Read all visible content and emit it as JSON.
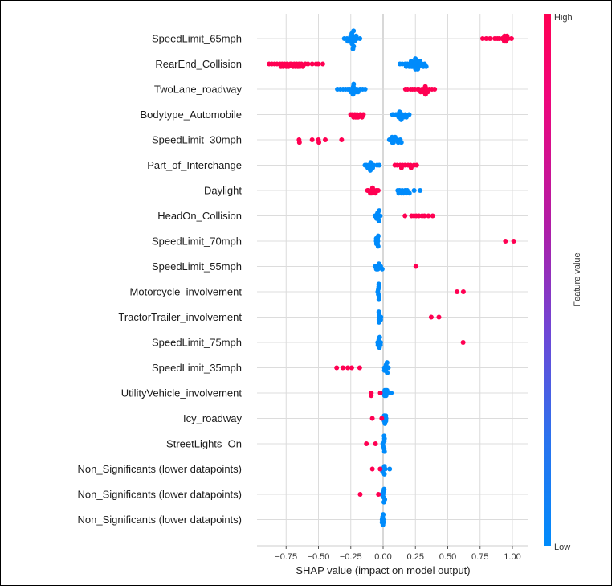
{
  "chart_data": {
    "type": "scatter",
    "subtype": "shap-beeswarm-summary",
    "title": "",
    "xlabel": "SHAP value (impact on model output)",
    "ylabel": "",
    "xlim": [
      -0.97,
      1.11
    ],
    "xticks": [
      -0.75,
      -0.5,
      -0.25,
      0.0,
      0.25,
      0.5,
      0.75,
      1.0
    ],
    "xtick_labels": [
      "−0.75",
      "−0.50",
      "−0.25",
      "0.00",
      "0.25",
      "0.50",
      "0.75",
      "1.00"
    ],
    "grid": true,
    "colorbar": {
      "label": "Feature value",
      "high_label": "High",
      "low_label": "Low",
      "high_color": "#ff0052",
      "low_color": "#008bfb",
      "placement": "right"
    },
    "features": [
      {
        "name": "SpeedLimit_65mph",
        "low": [
          -0.3,
          -0.28,
          -0.27,
          -0.26,
          -0.25,
          -0.25,
          -0.24,
          -0.24,
          -0.24,
          -0.24,
          -0.24,
          -0.23,
          -0.23,
          -0.23,
          -0.22,
          -0.22,
          -0.21,
          -0.2,
          -0.18
        ],
        "high": [
          0.77,
          0.8,
          0.83,
          0.86,
          0.88,
          0.9,
          0.92,
          0.93,
          0.94,
          0.94,
          0.95,
          0.95,
          0.96,
          0.97,
          0.99
        ]
      },
      {
        "name": "RearEnd_Collision",
        "high": [
          -0.88,
          -0.86,
          -0.84,
          -0.82,
          -0.8,
          -0.79,
          -0.78,
          -0.77,
          -0.76,
          -0.75,
          -0.74,
          -0.73,
          -0.72,
          -0.71,
          -0.7,
          -0.69,
          -0.68,
          -0.67,
          -0.66,
          -0.65,
          -0.64,
          -0.63,
          -0.62,
          -0.6,
          -0.58,
          -0.55,
          -0.52,
          -0.5,
          -0.47
        ],
        "low": [
          0.13,
          0.15,
          0.17,
          0.18,
          0.19,
          0.2,
          0.21,
          0.22,
          0.22,
          0.23,
          0.23,
          0.24,
          0.24,
          0.25,
          0.25,
          0.25,
          0.26,
          0.26,
          0.27,
          0.27,
          0.28,
          0.28,
          0.29,
          0.3,
          0.31,
          0.32,
          0.33
        ]
      },
      {
        "name": "TwoLane_roadway",
        "low": [
          -0.35,
          -0.33,
          -0.31,
          -0.29,
          -0.27,
          -0.26,
          -0.25,
          -0.24,
          -0.24,
          -0.23,
          -0.23,
          -0.23,
          -0.22,
          -0.21,
          -0.2,
          -0.19,
          -0.18,
          -0.16,
          -0.14
        ],
        "high": [
          0.17,
          0.19,
          0.21,
          0.23,
          0.25,
          0.27,
          0.28,
          0.29,
          0.3,
          0.31,
          0.32,
          0.32,
          0.33,
          0.33,
          0.34,
          0.35,
          0.36,
          0.38,
          0.4
        ]
      },
      {
        "name": "Bodytype_Automobile",
        "high": [
          -0.25,
          -0.24,
          -0.23,
          -0.22,
          -0.21,
          -0.2,
          -0.19,
          -0.18,
          -0.17,
          -0.16,
          -0.15
        ],
        "low": [
          0.07,
          0.08,
          0.1,
          0.11,
          0.12,
          0.13,
          0.13,
          0.13,
          0.14,
          0.15,
          0.16,
          0.17,
          0.18,
          0.2
        ]
      },
      {
        "name": "SpeedLimit_30mph",
        "high": [
          -0.65,
          -0.65,
          -0.55,
          -0.5,
          -0.5,
          -0.45,
          -0.32
        ],
        "low": [
          0.05,
          0.06,
          0.07,
          0.07,
          0.08,
          0.08,
          0.09,
          0.1,
          0.11,
          0.12,
          0.13,
          0.14
        ]
      },
      {
        "name": "Part_of_Interchange",
        "low": [
          -0.14,
          -0.13,
          -0.12,
          -0.11,
          -0.11,
          -0.1,
          -0.1,
          -0.09,
          -0.08,
          -0.07,
          -0.05,
          -0.03
        ],
        "high": [
          0.09,
          0.11,
          0.13,
          0.14,
          0.15,
          0.17,
          0.19,
          0.21,
          0.22,
          0.24,
          0.26
        ]
      },
      {
        "name": "Daylight",
        "high": [
          -0.12,
          -0.11,
          -0.1,
          -0.09,
          -0.09,
          -0.08,
          -0.07,
          -0.06,
          -0.05,
          -0.04
        ],
        "low": [
          0.11,
          0.12,
          0.13,
          0.14,
          0.15,
          0.16,
          0.17,
          0.18,
          0.19,
          0.2,
          0.24,
          0.29
        ]
      },
      {
        "name": "HeadOn_Collision",
        "low": [
          -0.06,
          -0.05,
          -0.05,
          -0.04,
          -0.04,
          -0.04,
          -0.03,
          -0.03,
          -0.02
        ],
        "high": [
          0.17,
          0.22,
          0.24,
          0.26,
          0.28,
          0.3,
          0.32,
          0.35,
          0.38
        ]
      },
      {
        "name": "SpeedLimit_70mph",
        "low": [
          -0.05,
          -0.05,
          -0.05,
          -0.04,
          -0.04,
          -0.04,
          -0.04,
          -0.04
        ],
        "high": [
          0.95,
          1.01
        ]
      },
      {
        "name": "SpeedLimit_55mph",
        "low": [
          -0.06,
          -0.05,
          -0.05,
          -0.04,
          -0.04,
          -0.03,
          -0.02,
          -0.01
        ],
        "high": [
          0.25
        ]
      },
      {
        "name": "Motorcycle_involvement",
        "low": [
          -0.04,
          -0.04,
          -0.04,
          -0.03,
          -0.03,
          -0.03,
          -0.03
        ],
        "high": [
          0.57,
          0.62
        ]
      },
      {
        "name": "TractorTrailer_involvement",
        "low": [
          -0.03,
          -0.03,
          -0.03,
          -0.03,
          -0.03,
          -0.02,
          -0.02
        ],
        "high": [
          0.37,
          0.43
        ]
      },
      {
        "name": "SpeedLimit_75mph",
        "low": [
          -0.04,
          -0.04,
          -0.03,
          -0.03,
          -0.03,
          -0.02,
          -0.02
        ],
        "high": [
          0.62
        ]
      },
      {
        "name": "SpeedLimit_35mph",
        "high": [
          -0.36,
          -0.31,
          -0.27,
          -0.24,
          -0.18
        ],
        "low": [
          0.01,
          0.01,
          0.02,
          0.02,
          0.02,
          0.03,
          0.03,
          0.04
        ]
      },
      {
        "name": "UtilityVehicle_involvement",
        "high": [
          -0.09,
          -0.09,
          -0.02
        ],
        "low": [
          0.0,
          0.01,
          0.01,
          0.02,
          0.02,
          0.03,
          0.05,
          0.06
        ]
      },
      {
        "name": "Icy_roadway",
        "high": [
          -0.08,
          -0.01
        ],
        "low": [
          0.0,
          0.01,
          0.01,
          0.01,
          0.02,
          0.02,
          0.02
        ]
      },
      {
        "name": "StreetLights_On",
        "high": [
          -0.13,
          -0.06
        ],
        "low": [
          0.0,
          0.0,
          0.01,
          0.01,
          0.01,
          0.01,
          0.01
        ]
      },
      {
        "name": "Non_Significants (lower datapoints)",
        "high": [
          -0.08,
          -0.02
        ],
        "low": [
          -0.01,
          0.0,
          0.0,
          0.01,
          0.01,
          0.02,
          0.05
        ]
      },
      {
        "name": "Non_Significants (lower datapoints)",
        "high": [
          -0.18,
          -0.04
        ],
        "low": [
          -0.01,
          0.0,
          0.0,
          0.0,
          0.01,
          0.01,
          0.01
        ]
      },
      {
        "name": "Non_Significants (lower datapoints)",
        "high": [],
        "low": [
          -0.01,
          -0.01,
          0.0,
          0.0,
          0.0,
          0.0,
          0.0
        ]
      }
    ]
  }
}
